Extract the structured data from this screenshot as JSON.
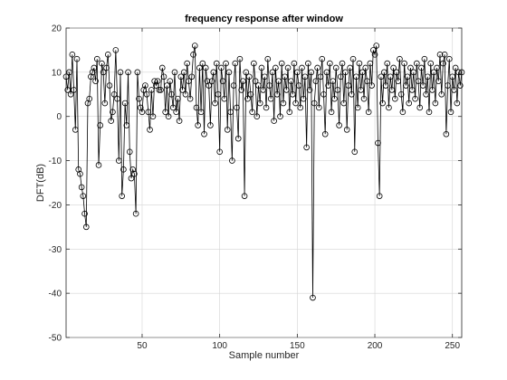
{
  "chart_data": {
    "type": "line",
    "title": "frequency response after window",
    "xlabel": "Sample number",
    "ylabel": "DFT(dB)",
    "xlim": [
      1,
      256
    ],
    "ylim": [
      -50,
      20
    ],
    "xticks": [
      50,
      100,
      150,
      200,
      250
    ],
    "yticks": [
      -50,
      -40,
      -30,
      -20,
      -10,
      0,
      10,
      20
    ],
    "grid": true,
    "marker": "circle",
    "line_color": "#000000",
    "series": [
      {
        "values": [
          9,
          6,
          10,
          5,
          14,
          6,
          -3,
          13,
          -12,
          -13,
          -16,
          -18,
          -22,
          -25,
          3,
          4,
          9,
          10,
          11,
          8,
          13,
          -11,
          -2,
          12,
          10,
          3,
          11,
          14,
          7,
          -1,
          1,
          5,
          15,
          4,
          -10,
          10,
          -18,
          -12,
          3,
          -2,
          10,
          -8,
          -14,
          -12,
          -13,
          -22,
          10,
          4,
          2,
          1,
          6,
          7,
          5,
          1,
          -3,
          6,
          0,
          8,
          7,
          8,
          6,
          6,
          11,
          9,
          1,
          7,
          0,
          8,
          5,
          2,
          10,
          1,
          4,
          -1,
          9,
          6,
          10,
          5,
          12,
          8,
          4,
          9,
          14,
          16,
          2,
          -2,
          11,
          1,
          12,
          -4,
          11,
          8,
          7,
          -2,
          8,
          10,
          3,
          12,
          5,
          -8,
          11,
          8,
          4,
          12,
          -3,
          10,
          1,
          -10,
          7,
          12,
          2,
          -5,
          13,
          6,
          8,
          -18,
          10,
          4,
          9,
          5,
          1,
          12,
          8,
          0,
          7,
          3,
          11,
          6,
          9,
          2,
          13,
          7,
          4,
          10,
          -1,
          11,
          5,
          8,
          0,
          12,
          3,
          9,
          6,
          11,
          1,
          8,
          5,
          12,
          3,
          10,
          7,
          2,
          11,
          4,
          9,
          -7,
          12,
          6,
          10,
          -41,
          3,
          8,
          11,
          2,
          9,
          13,
          5,
          -4,
          10,
          7,
          12,
          1,
          8,
          4,
          11,
          6,
          -2,
          9,
          12,
          3,
          10,
          -3,
          7,
          11,
          5,
          13,
          -8,
          9,
          2,
          12,
          6,
          10,
          4,
          11,
          8,
          1,
          12,
          7,
          15,
          14,
          16,
          -6,
          -18,
          9,
          3,
          10,
          7,
          12,
          2,
          9,
          6,
          11,
          4,
          10,
          8,
          13,
          5,
          1,
          12,
          7,
          9,
          3,
          11,
          6,
          10,
          4,
          12,
          8,
          2,
          11,
          7,
          13,
          5,
          9,
          1,
          12,
          6,
          10,
          3,
          11,
          8,
          14,
          5,
          12,
          14,
          -4,
          7,
          13,
          1,
          9,
          6,
          11,
          3,
          10,
          7,
          10
        ]
      }
    ]
  }
}
